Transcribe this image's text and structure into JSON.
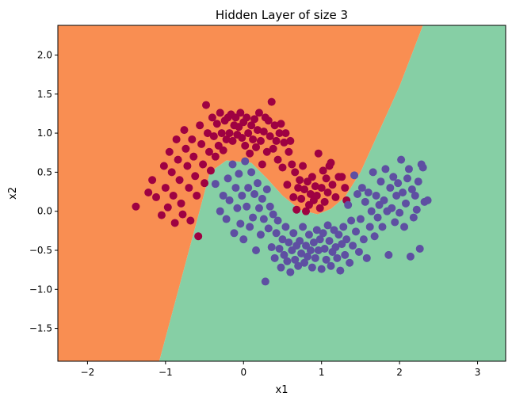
{
  "chart_data": {
    "type": "scatter",
    "title": "Hidden Layer of size 3",
    "xlabel": "x1",
    "ylabel": "x2",
    "xlim": [
      -2.38,
      3.36
    ],
    "ylim": [
      -1.92,
      2.38
    ],
    "grid": false,
    "legend": "none",
    "x_ticks": [
      -2,
      -1,
      0,
      1,
      2,
      3
    ],
    "x_tick_labels": [
      "−2",
      "−1",
      "0",
      "1",
      "2",
      "3"
    ],
    "y_ticks": [
      -1.5,
      -1.0,
      -0.5,
      0.0,
      0.5,
      1.0,
      1.5,
      2.0
    ],
    "y_tick_labels": [
      "−1.5",
      "−1.0",
      "−0.5",
      "0.0",
      "0.5",
      "1.0",
      "1.5",
      "2.0"
    ],
    "decision_regions": {
      "class_0_color": "#f98e52",
      "class_1_color": "#86cfa5",
      "boundary": [
        [
          -1.08,
          -1.92
        ],
        [
          -0.43,
          0.5
        ],
        [
          -0.22,
          0.65
        ],
        [
          0.1,
          0.62
        ],
        [
          0.3,
          0.42
        ],
        [
          0.5,
          0.2
        ],
        [
          0.72,
          0.02
        ],
        [
          0.95,
          -0.04
        ],
        [
          1.12,
          0.03
        ],
        [
          1.3,
          0.18
        ],
        [
          1.5,
          0.5
        ],
        [
          2.0,
          1.6
        ],
        [
          2.3,
          2.38
        ]
      ]
    },
    "series": [
      {
        "class": 0,
        "color": "#9e0142",
        "points": [
          [
            -1.38,
            0.06
          ],
          [
            -1.22,
            0.24
          ],
          [
            -1.17,
            0.4
          ],
          [
            -1.12,
            0.18
          ],
          [
            -1.05,
            -0.05
          ],
          [
            -1.02,
            0.58
          ],
          [
            -1.0,
            0.3
          ],
          [
            -0.97,
            0.05
          ],
          [
            -0.95,
            0.76
          ],
          [
            -0.92,
            0.5
          ],
          [
            -0.9,
            0.2
          ],
          [
            -0.88,
            -0.15
          ],
          [
            -0.86,
            0.92
          ],
          [
            -0.84,
            0.66
          ],
          [
            -0.82,
            0.4
          ],
          [
            -0.8,
            0.1
          ],
          [
            -0.78,
            -0.04
          ],
          [
            -0.76,
            1.04
          ],
          [
            -0.74,
            0.8
          ],
          [
            -0.72,
            0.58
          ],
          [
            -0.7,
            0.3
          ],
          [
            -0.68,
            -0.12
          ],
          [
            -0.66,
            0.92
          ],
          [
            -0.64,
            0.7
          ],
          [
            -0.62,
            0.45
          ],
          [
            -0.6,
            0.2
          ],
          [
            -0.58,
            -0.32
          ],
          [
            -0.56,
            1.1
          ],
          [
            -0.54,
            0.86
          ],
          [
            -0.52,
            0.6
          ],
          [
            -0.5,
            0.36
          ],
          [
            -0.48,
            1.36
          ],
          [
            -0.46,
            1.0
          ],
          [
            -0.44,
            0.76
          ],
          [
            -0.42,
            0.52
          ],
          [
            -0.4,
            1.2
          ],
          [
            -0.38,
            0.96
          ],
          [
            -0.36,
            0.7
          ],
          [
            -0.34,
            1.12
          ],
          [
            -0.32,
            0.84
          ],
          [
            -0.3,
            1.26
          ],
          [
            -0.28,
            1.0
          ],
          [
            -0.26,
            0.78
          ],
          [
            -0.24,
            1.16
          ],
          [
            -0.22,
            0.92
          ],
          [
            -0.2,
            1.2
          ],
          [
            -0.18,
            1.0
          ],
          [
            -0.16,
            1.24
          ],
          [
            -0.14,
            0.9
          ],
          [
            -0.12,
            1.1
          ],
          [
            -0.1,
            1.2
          ],
          [
            -0.08,
            0.98
          ],
          [
            -0.06,
            1.08
          ],
          [
            -0.04,
            1.26
          ],
          [
            -0.02,
            0.94
          ],
          [
            0.0,
            1.14
          ],
          [
            0.02,
            0.84
          ],
          [
            0.04,
            1.2
          ],
          [
            0.06,
            1.0
          ],
          [
            0.08,
            0.74
          ],
          [
            0.1,
            1.1
          ],
          [
            0.12,
            0.92
          ],
          [
            0.14,
            1.18
          ],
          [
            0.16,
            0.82
          ],
          [
            0.18,
            1.04
          ],
          [
            0.2,
            1.26
          ],
          [
            0.22,
            0.9
          ],
          [
            0.24,
            0.6
          ],
          [
            0.26,
            1.02
          ],
          [
            0.28,
            1.2
          ],
          [
            0.3,
            0.76
          ],
          [
            0.32,
            1.16
          ],
          [
            0.34,
            0.96
          ],
          [
            0.36,
            1.4
          ],
          [
            0.38,
            0.8
          ],
          [
            0.4,
            1.1
          ],
          [
            0.42,
            0.9
          ],
          [
            0.44,
            0.66
          ],
          [
            0.46,
            1.0
          ],
          [
            0.48,
            1.12
          ],
          [
            0.5,
            0.56
          ],
          [
            0.52,
            0.88
          ],
          [
            0.54,
            1.0
          ],
          [
            0.56,
            0.34
          ],
          [
            0.58,
            0.76
          ],
          [
            0.6,
            0.9
          ],
          [
            0.62,
            0.6
          ],
          [
            0.64,
            0.18
          ],
          [
            0.66,
            0.5
          ],
          [
            0.68,
            0.02
          ],
          [
            0.7,
            0.3
          ],
          [
            0.72,
            0.4
          ],
          [
            0.74,
            0.16
          ],
          [
            0.76,
            0.58
          ],
          [
            0.78,
            0.28
          ],
          [
            0.8,
            0.0
          ],
          [
            0.82,
            0.38
          ],
          [
            0.84,
            0.08
          ],
          [
            0.86,
            0.22
          ],
          [
            0.88,
            0.44
          ],
          [
            0.9,
            0.14
          ],
          [
            0.92,
            0.32
          ],
          [
            0.94,
            0.2
          ],
          [
            0.96,
            0.74
          ],
          [
            0.98,
            0.04
          ],
          [
            1.0,
            0.3
          ],
          [
            1.02,
            0.52
          ],
          [
            1.04,
            0.12
          ],
          [
            1.06,
            0.42
          ],
          [
            1.08,
            0.24
          ],
          [
            1.1,
            0.58
          ],
          [
            1.12,
            0.62
          ],
          [
            1.14,
            0.34
          ],
          [
            1.18,
            0.18
          ],
          [
            1.22,
            0.44
          ],
          [
            1.26,
            0.44
          ],
          [
            1.3,
            0.3
          ],
          [
            1.32,
            0.14
          ]
        ]
      },
      {
        "class": 1,
        "color": "#5e4fa2",
        "points": [
          [
            -0.36,
            0.35
          ],
          [
            -0.3,
            0.0
          ],
          [
            -0.26,
            0.2
          ],
          [
            -0.22,
            -0.1
          ],
          [
            -0.2,
            0.42
          ],
          [
            -0.18,
            0.14
          ],
          [
            -0.14,
            0.6
          ],
          [
            -0.12,
            -0.28
          ],
          [
            -0.1,
            0.3
          ],
          [
            -0.08,
            0.04
          ],
          [
            -0.06,
            0.48
          ],
          [
            -0.04,
            -0.16
          ],
          [
            -0.02,
            0.2
          ],
          [
            0.0,
            -0.36
          ],
          [
            0.02,
            0.64
          ],
          [
            0.04,
            0.06
          ],
          [
            0.06,
            0.3
          ],
          [
            0.08,
            -0.2
          ],
          [
            0.1,
            0.5
          ],
          [
            0.12,
            -0.08
          ],
          [
            0.14,
            0.22
          ],
          [
            0.16,
            -0.5
          ],
          [
            0.18,
            0.36
          ],
          [
            0.2,
            0.04
          ],
          [
            0.22,
            -0.3
          ],
          [
            0.24,
            0.16
          ],
          [
            0.26,
            -0.1
          ],
          [
            0.28,
            -0.9
          ],
          [
            0.3,
            0.28
          ],
          [
            0.32,
            -0.22
          ],
          [
            0.34,
            0.06
          ],
          [
            0.36,
            -0.46
          ],
          [
            0.38,
            -0.04
          ],
          [
            0.4,
            -0.6
          ],
          [
            0.42,
            -0.28
          ],
          [
            0.44,
            -0.12
          ],
          [
            0.46,
            -0.48
          ],
          [
            0.48,
            -0.72
          ],
          [
            0.5,
            -0.36
          ],
          [
            0.52,
            -0.56
          ],
          [
            0.54,
            -0.2
          ],
          [
            0.56,
            -0.64
          ],
          [
            0.58,
            -0.4
          ],
          [
            0.6,
            -0.78
          ],
          [
            0.62,
            -0.5
          ],
          [
            0.64,
            -0.28
          ],
          [
            0.66,
            -0.62
          ],
          [
            0.68,
            -0.44
          ],
          [
            0.7,
            -0.7
          ],
          [
            0.72,
            -0.38
          ],
          [
            0.74,
            -0.54
          ],
          [
            0.76,
            -0.2
          ],
          [
            0.78,
            -0.66
          ],
          [
            0.8,
            -0.44
          ],
          [
            0.82,
            -0.58
          ],
          [
            0.84,
            -0.3
          ],
          [
            0.86,
            -0.5
          ],
          [
            0.88,
            -0.72
          ],
          [
            0.9,
            -0.4
          ],
          [
            0.92,
            -0.6
          ],
          [
            0.94,
            -0.24
          ],
          [
            0.96,
            -0.5
          ],
          [
            0.98,
            -0.36
          ],
          [
            1.0,
            -0.74
          ],
          [
            1.02,
            -0.28
          ],
          [
            1.04,
            -0.48
          ],
          [
            1.06,
            -0.62
          ],
          [
            1.08,
            -0.18
          ],
          [
            1.1,
            -0.38
          ],
          [
            1.12,
            -0.7
          ],
          [
            1.14,
            -0.52
          ],
          [
            1.16,
            -0.24
          ],
          [
            1.18,
            -0.46
          ],
          [
            1.2,
            -0.6
          ],
          [
            1.22,
            -0.3
          ],
          [
            1.24,
            -0.76
          ],
          [
            1.26,
            -0.42
          ],
          [
            1.28,
            -0.2
          ],
          [
            1.3,
            -0.56
          ],
          [
            1.32,
            -0.36
          ],
          [
            1.34,
            0.08
          ],
          [
            1.36,
            -0.66
          ],
          [
            1.38,
            -0.12
          ],
          [
            1.4,
            -0.44
          ],
          [
            1.42,
            0.46
          ],
          [
            1.44,
            -0.26
          ],
          [
            1.46,
            0.22
          ],
          [
            1.48,
            -0.52
          ],
          [
            1.5,
            -0.1
          ],
          [
            1.52,
            0.3
          ],
          [
            1.54,
            -0.36
          ],
          [
            1.56,
            0.12
          ],
          [
            1.58,
            -0.6
          ],
          [
            1.6,
            0.24
          ],
          [
            1.62,
            -0.2
          ],
          [
            1.64,
            0.0
          ],
          [
            1.66,
            0.5
          ],
          [
            1.68,
            -0.32
          ],
          [
            1.7,
            0.2
          ],
          [
            1.72,
            -0.08
          ],
          [
            1.74,
            0.08
          ],
          [
            1.76,
            0.38
          ],
          [
            1.78,
            -0.2
          ],
          [
            1.8,
            0.14
          ],
          [
            1.82,
            0.54
          ],
          [
            1.84,
            0.0
          ],
          [
            1.86,
            -0.56
          ],
          [
            1.88,
            0.3
          ],
          [
            1.9,
            0.04
          ],
          [
            1.92,
            0.44
          ],
          [
            1.94,
            -0.14
          ],
          [
            1.96,
            0.2
          ],
          [
            1.98,
            0.36
          ],
          [
            2.0,
            -0.02
          ],
          [
            2.02,
            0.66
          ],
          [
            2.04,
            0.24
          ],
          [
            2.06,
            -0.2
          ],
          [
            2.08,
            0.1
          ],
          [
            2.1,
            0.42
          ],
          [
            2.12,
            0.54
          ],
          [
            2.14,
            -0.58
          ],
          [
            2.16,
            0.28
          ],
          [
            2.18,
            -0.08
          ],
          [
            2.2,
            0.2
          ],
          [
            2.22,
            0.02
          ],
          [
            2.24,
            0.38
          ],
          [
            2.26,
            -0.48
          ],
          [
            2.28,
            0.6
          ],
          [
            2.3,
            0.56
          ],
          [
            2.32,
            0.12
          ],
          [
            2.36,
            0.14
          ]
        ]
      }
    ]
  }
}
